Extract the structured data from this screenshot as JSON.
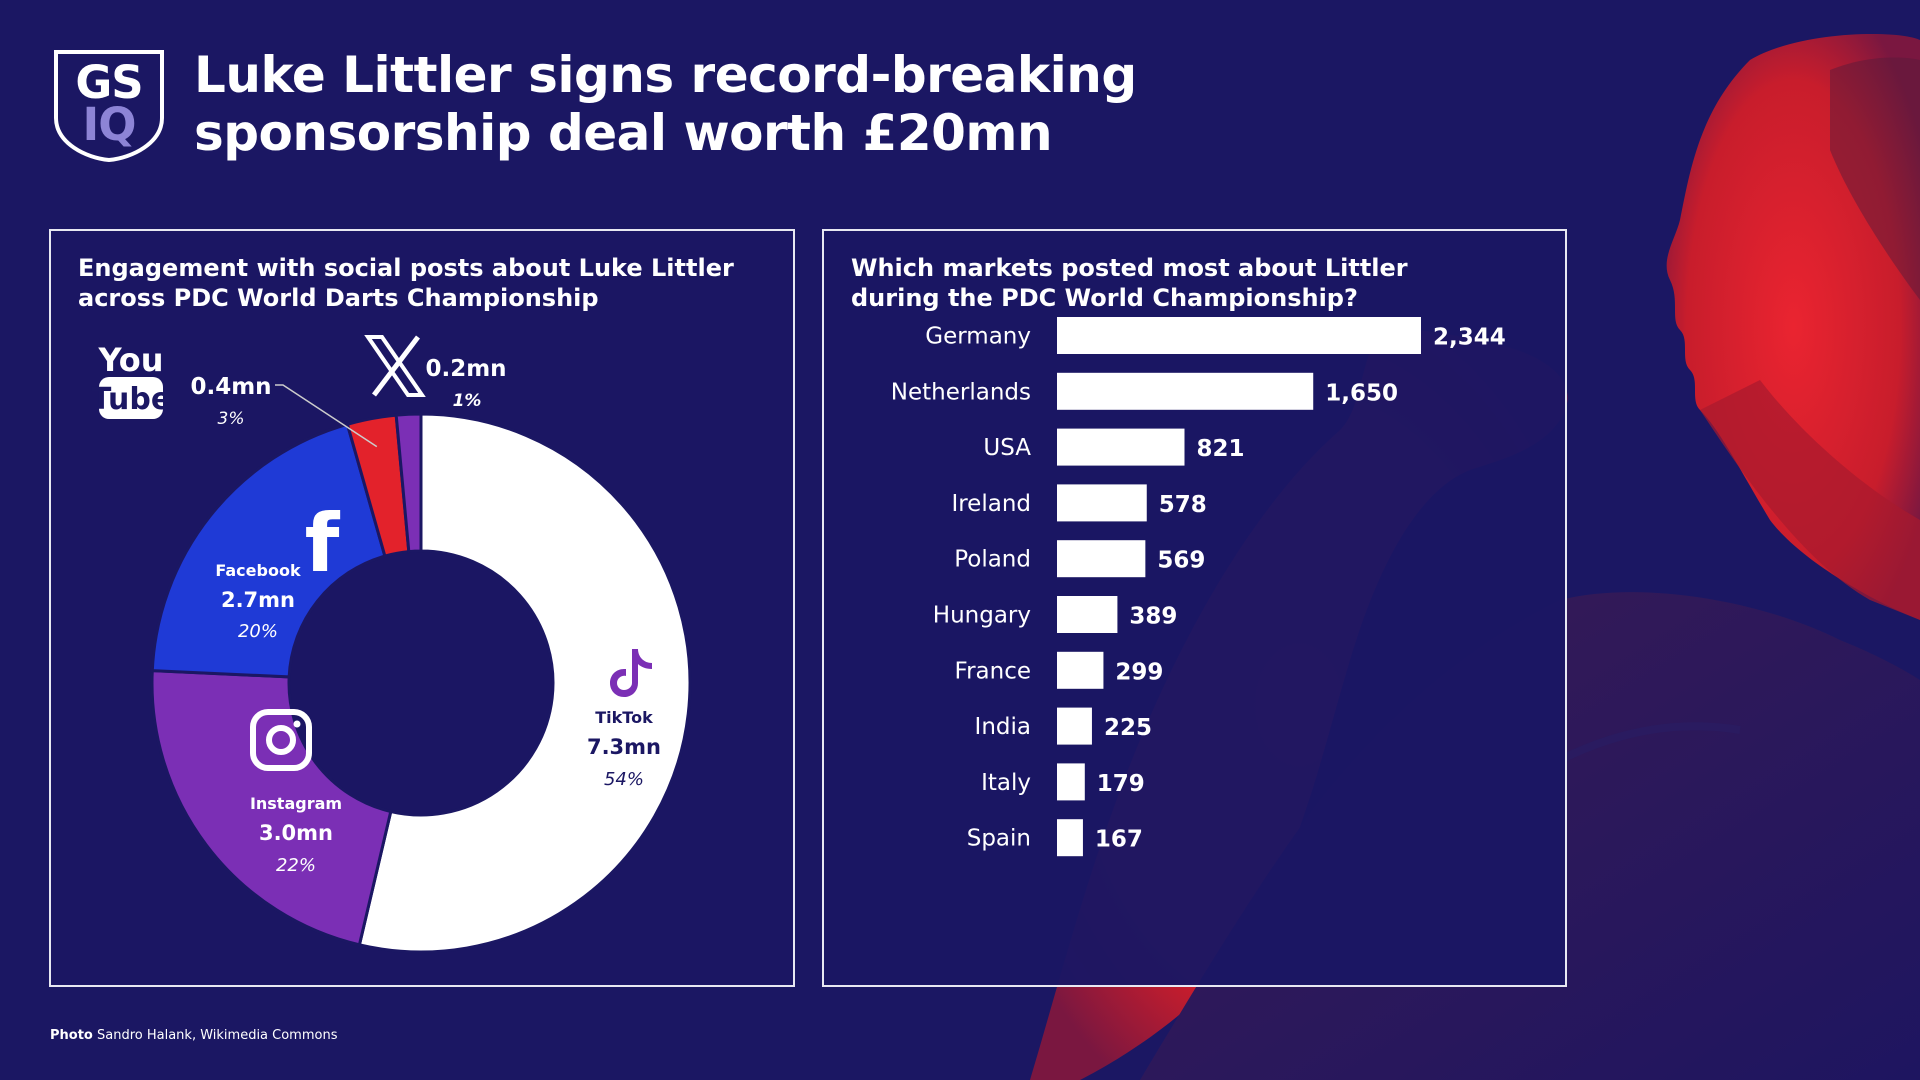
{
  "header": {
    "logo_top": "GS",
    "logo_bottom": "IQ",
    "title_line1": "Luke Littler signs record-breaking",
    "title_line2": "sponsorship deal worth £20mn"
  },
  "colors": {
    "background": "#1b1763",
    "accent_red": "#e3222b",
    "tiktok": "#ffffff",
    "instagram": "#7b2fb5",
    "facebook": "#1f3ad6",
    "youtube": "#e3222b",
    "x": "#7b2fb5"
  },
  "donut": {
    "title_line1": "Engagement with social posts about Luke Littler",
    "title_line2": "across PDC World Darts Championship",
    "slices": [
      {
        "platform": "TikTok",
        "name": "TikTok",
        "value": "7.3mn",
        "pct": "54%",
        "amount": 7.3,
        "icon": "tiktok-icon"
      },
      {
        "platform": "Instagram",
        "name": "Instagram",
        "value": "3.0mn",
        "pct": "22%",
        "amount": 3.0,
        "icon": "instagram-icon"
      },
      {
        "platform": "Facebook",
        "name": "Facebook",
        "value": "2.7mn",
        "pct": "20%",
        "amount": 2.7,
        "icon": "facebook-icon"
      },
      {
        "platform": "YouTube",
        "value": "0.4mn",
        "pct": "3%",
        "amount": 0.4,
        "icon": "youtube-icon"
      },
      {
        "platform": "X",
        "value": "0.2mn",
        "pct": "1%",
        "amount": 0.2,
        "icon": "x-icon"
      }
    ]
  },
  "bars": {
    "title_line1": "Which markets posted most about Littler",
    "title_line2": "during the PDC World Championship?",
    "markets": [
      {
        "country": "Germany",
        "label": "2,344",
        "value": 2344
      },
      {
        "country": "Netherlands",
        "label": "1,650",
        "value": 1650
      },
      {
        "country": "USA",
        "label": "821",
        "value": 821
      },
      {
        "country": "Ireland",
        "label": "578",
        "value": 578
      },
      {
        "country": "Poland",
        "label": "569",
        "value": 569
      },
      {
        "country": "Hungary",
        "label": "389",
        "value": 389
      },
      {
        "country": "France",
        "label": "299",
        "value": 299
      },
      {
        "country": "India",
        "label": "225",
        "value": 225
      },
      {
        "country": "Italy",
        "label": "179",
        "value": 179
      },
      {
        "country": "Spain",
        "label": "167",
        "value": 167
      }
    ]
  },
  "chart_data": [
    {
      "type": "pie",
      "title": "Engagement with social posts about Luke Littler across PDC World Darts Championship",
      "categories": [
        "TikTok",
        "Instagram",
        "Facebook",
        "YouTube",
        "X"
      ],
      "values": [
        7.3,
        3.0,
        2.7,
        0.4,
        0.2
      ],
      "percentages": [
        54,
        22,
        20,
        3,
        1
      ],
      "unit": "mn"
    },
    {
      "type": "bar",
      "orientation": "horizontal",
      "title": "Which markets posted most about Littler during the PDC World Championship?",
      "categories": [
        "Germany",
        "Netherlands",
        "USA",
        "Ireland",
        "Poland",
        "Hungary",
        "France",
        "India",
        "Italy",
        "Spain"
      ],
      "values": [
        2344,
        1650,
        821,
        578,
        569,
        389,
        299,
        225,
        179,
        167
      ],
      "xlabel": "",
      "ylabel": ""
    }
  ],
  "footer": {
    "credit_label": "Photo",
    "credit_text": "Sandro Halank, Wikimedia Commons"
  }
}
